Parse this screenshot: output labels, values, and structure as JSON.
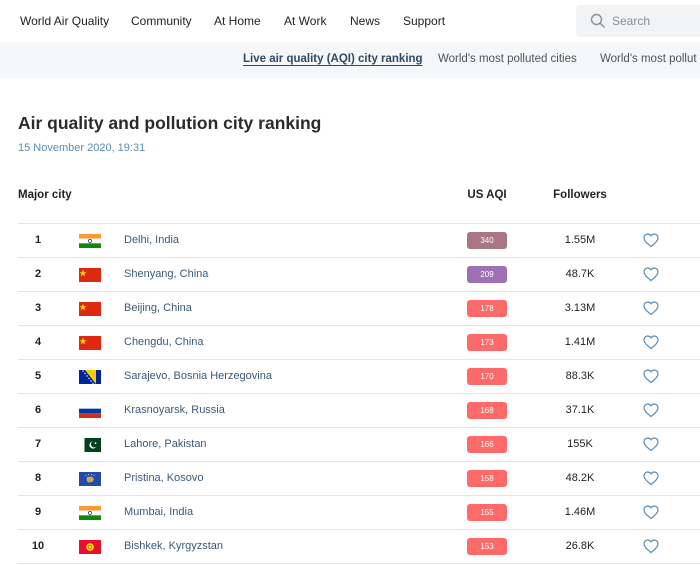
{
  "nav": {
    "items": [
      "World Air Quality",
      "Community",
      "At Home",
      "At Work",
      "News",
      "Support"
    ],
    "search_placeholder": "Search"
  },
  "subnav": {
    "tabs": [
      "Live air quality (AQI) city ranking",
      "World's most polluted cities",
      "World's most pollut"
    ]
  },
  "page": {
    "title": "Air quality and pollution city ranking",
    "timestamp": "15 November 2020, 19:31"
  },
  "table": {
    "headers": [
      "Major city",
      "US AQI",
      "Followers"
    ],
    "rows": [
      {
        "rank": 1,
        "city": "Delhi, India",
        "aqi": 340,
        "color": "#a97684",
        "followers": "1.55M"
      },
      {
        "rank": 2,
        "city": "Shenyang, China",
        "aqi": 209,
        "color": "#a070b6",
        "followers": "48.7K"
      },
      {
        "rank": 3,
        "city": "Beijing, China",
        "aqi": 178,
        "color": "#fe6a69",
        "followers": "3.13M"
      },
      {
        "rank": 4,
        "city": "Chengdu, China",
        "aqi": 173,
        "color": "#fe6a69",
        "followers": "1.41M"
      },
      {
        "rank": 5,
        "city": "Sarajevo, Bosnia Herzegovina",
        "aqi": 170,
        "color": "#fe6a69",
        "followers": "88.3K"
      },
      {
        "rank": 6,
        "city": "Krasnoyarsk, Russia",
        "aqi": 168,
        "color": "#fe6a69",
        "followers": "37.1K"
      },
      {
        "rank": 7,
        "city": "Lahore, Pakistan",
        "aqi": 166,
        "color": "#fe6a69",
        "followers": "155K"
      },
      {
        "rank": 8,
        "city": "Pristina, Kosovo",
        "aqi": 158,
        "color": "#fe6a69",
        "followers": "48.2K"
      },
      {
        "rank": 9,
        "city": "Mumbai, India",
        "aqi": 155,
        "color": "#fe6a69",
        "followers": "1.46M"
      },
      {
        "rank": 10,
        "city": "Bishkek, Kyrgyzstan",
        "aqi": 153,
        "color": "#fe6a69",
        "followers": "26.8K"
      }
    ]
  }
}
